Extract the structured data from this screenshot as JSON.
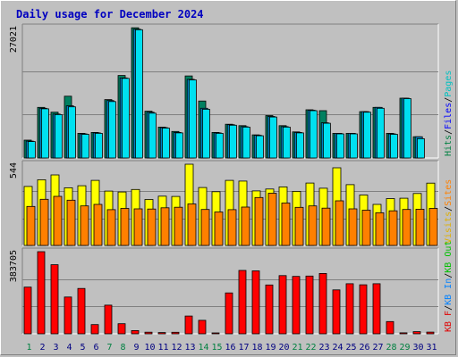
{
  "chart_data": {
    "type": "bar",
    "title": "Daily usage for December 2024",
    "categories": [
      "1",
      "2",
      "3",
      "4",
      "5",
      "6",
      "7",
      "8",
      "9",
      "10",
      "11",
      "12",
      "13",
      "14",
      "15",
      "16",
      "17",
      "18",
      "19",
      "20",
      "21",
      "22",
      "23",
      "24",
      "25",
      "26",
      "27",
      "28",
      "29",
      "30",
      "31"
    ],
    "weekend_days": [
      "1",
      "7",
      "8",
      "14",
      "15",
      "21",
      "22",
      "28",
      "29"
    ],
    "grid": true,
    "panels": [
      {
        "id": "requests",
        "ymax_label": "27021",
        "ylim": [
          0,
          27021
        ],
        "legend": [
          {
            "text": "Hits",
            "color": "#008040"
          },
          {
            "text": "/",
            "color": "#000000"
          },
          {
            "text": "Files",
            "color": "#0000ff"
          },
          {
            "text": "/",
            "color": "#000000"
          },
          {
            "text": "Pages",
            "color": "#00c0c0"
          }
        ],
        "series": [
          {
            "name": "Hits",
            "color": "#008060",
            "values": [
              3700,
              10500,
              9500,
              12800,
              5100,
              5300,
              12100,
              17100,
              27000,
              9700,
              6400,
              5500,
              17000,
              11800,
              5300,
              7000,
              6700,
              4800,
              8800,
              6700,
              5400,
              10000,
              9800,
              5100,
              5100,
              9600,
              10500,
              5100,
              12400,
              4400,
              0
            ]
          },
          {
            "name": "Files",
            "color": "#0080c0",
            "values": [
              3500,
              10300,
              9100,
              10800,
              5000,
              5200,
              11900,
              16600,
              26700,
              9500,
              6300,
              5300,
              16300,
              10300,
              5200,
              6900,
              6500,
              4700,
              8600,
              6500,
              5300,
              9900,
              7300,
              5100,
              5100,
              9600,
              10500,
              5000,
              12400,
              4400,
              0
            ]
          },
          {
            "name": "Pages",
            "color": "#00e0f0",
            "values": [
              3400,
              10200,
              9000,
              10600,
              4900,
              5100,
              11700,
              16500,
              26600,
              9300,
              6200,
              5200,
              16200,
              10100,
              5100,
              6800,
              6400,
              4600,
              8500,
              6400,
              5200,
              9800,
              7200,
              5000,
              5000,
              9500,
              10300,
              4900,
              12300,
              4000,
              0
            ]
          }
        ]
      },
      {
        "id": "sites",
        "ymax_label": "544",
        "ylim": [
          0,
          544
        ],
        "legend": [
          {
            "text": "Visits",
            "color": "#e0b000"
          },
          {
            "text": "/",
            "color": "#000000"
          },
          {
            "text": "Sites",
            "color": "#ff8000"
          }
        ],
        "series": [
          {
            "name": "Visits",
            "color": "#ffff00",
            "values": [
              395,
              440,
              472,
              386,
              400,
              436,
              364,
              358,
              375,
              308,
              330,
              328,
              544,
              388,
              360,
              436,
              431,
              365,
              378,
              392,
              362,
              418,
              383,
              520,
              407,
              338,
              275,
              314,
              316,
              348,
              417
            ]
          },
          {
            "name": "Sites",
            "color": "#ff8000",
            "values": [
              261,
              309,
              329,
              303,
              265,
              275,
              240,
              248,
              245,
              244,
              252,
              256,
              278,
              241,
              224,
              240,
              257,
              321,
              350,
              284,
              255,
              265,
              250,
              299,
              245,
              236,
              219,
              232,
              241,
              243,
              248
            ]
          }
        ]
      },
      {
        "id": "kbytes",
        "ymax_label": "383705",
        "ylim": [
          0,
          383705
        ],
        "legend": [
          {
            "text": "KB F",
            "color": "#e00000"
          },
          {
            "text": "/",
            "color": "#000000"
          },
          {
            "text": "KB In",
            "color": "#0080ff"
          },
          {
            "text": "/",
            "color": "#000000"
          },
          {
            "text": "KB Out",
            "color": "#00c000"
          }
        ],
        "series": [
          {
            "name": "KB F",
            "color": "#ff0000",
            "values": [
              218000,
              383705,
              323000,
              172000,
              212000,
              43000,
              134000,
              47000,
              15000,
              7500,
              6000,
              7000,
              83000,
              63000,
              4000,
              191000,
              296000,
              294000,
              228000,
              272000,
              268000,
              270000,
              282000,
              205000,
              234000,
              229000,
              234000,
              57000,
              4500,
              10000,
              8000
            ]
          }
        ]
      }
    ]
  }
}
